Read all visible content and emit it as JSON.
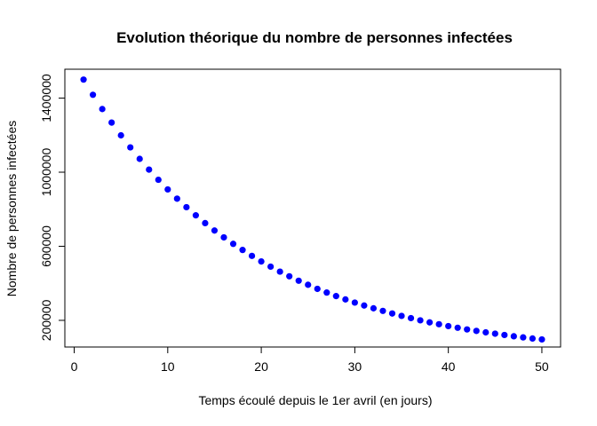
{
  "chart_data": {
    "type": "scatter",
    "title": "Evolution théorique du nombre de personnes infectées",
    "xlabel": "Temps écoulé depuis le 1er avril (en jours)",
    "ylabel": "Nombre de personnes infectées",
    "xlim": [
      -1,
      52
    ],
    "ylim": [
      56000,
      1556000
    ],
    "xticks": [
      0,
      10,
      20,
      30,
      40,
      50
    ],
    "yticks": [
      200000,
      600000,
      1000000,
      1400000
    ],
    "point_color": "#0000ff",
    "grid": false,
    "x": [
      1,
      2,
      3,
      4,
      5,
      6,
      7,
      8,
      9,
      10,
      11,
      12,
      13,
      14,
      15,
      16,
      17,
      18,
      19,
      20,
      21,
      22,
      23,
      24,
      25,
      26,
      27,
      28,
      29,
      30,
      31,
      32,
      33,
      34,
      35,
      36,
      37,
      38,
      39,
      40,
      41,
      42,
      43,
      44,
      45,
      46,
      47,
      48,
      49,
      50
    ],
    "y": [
      1500000,
      1418000,
      1341000,
      1268000,
      1199000,
      1134000,
      1072000,
      1014000,
      959000,
      907000,
      857000,
      811000,
      767000,
      725000,
      685000,
      648000,
      613000,
      580000,
      548000,
      518000,
      490000,
      463000,
      438000,
      414000,
      392000,
      370000,
      350000,
      331000,
      313000,
      296000,
      280000,
      265000,
      251000,
      237000,
      224000,
      212000,
      200000,
      189000,
      179000,
      169000,
      160000,
      151000,
      143000,
      135000,
      128000,
      121000,
      114000,
      108000,
      102000,
      97000
    ]
  }
}
